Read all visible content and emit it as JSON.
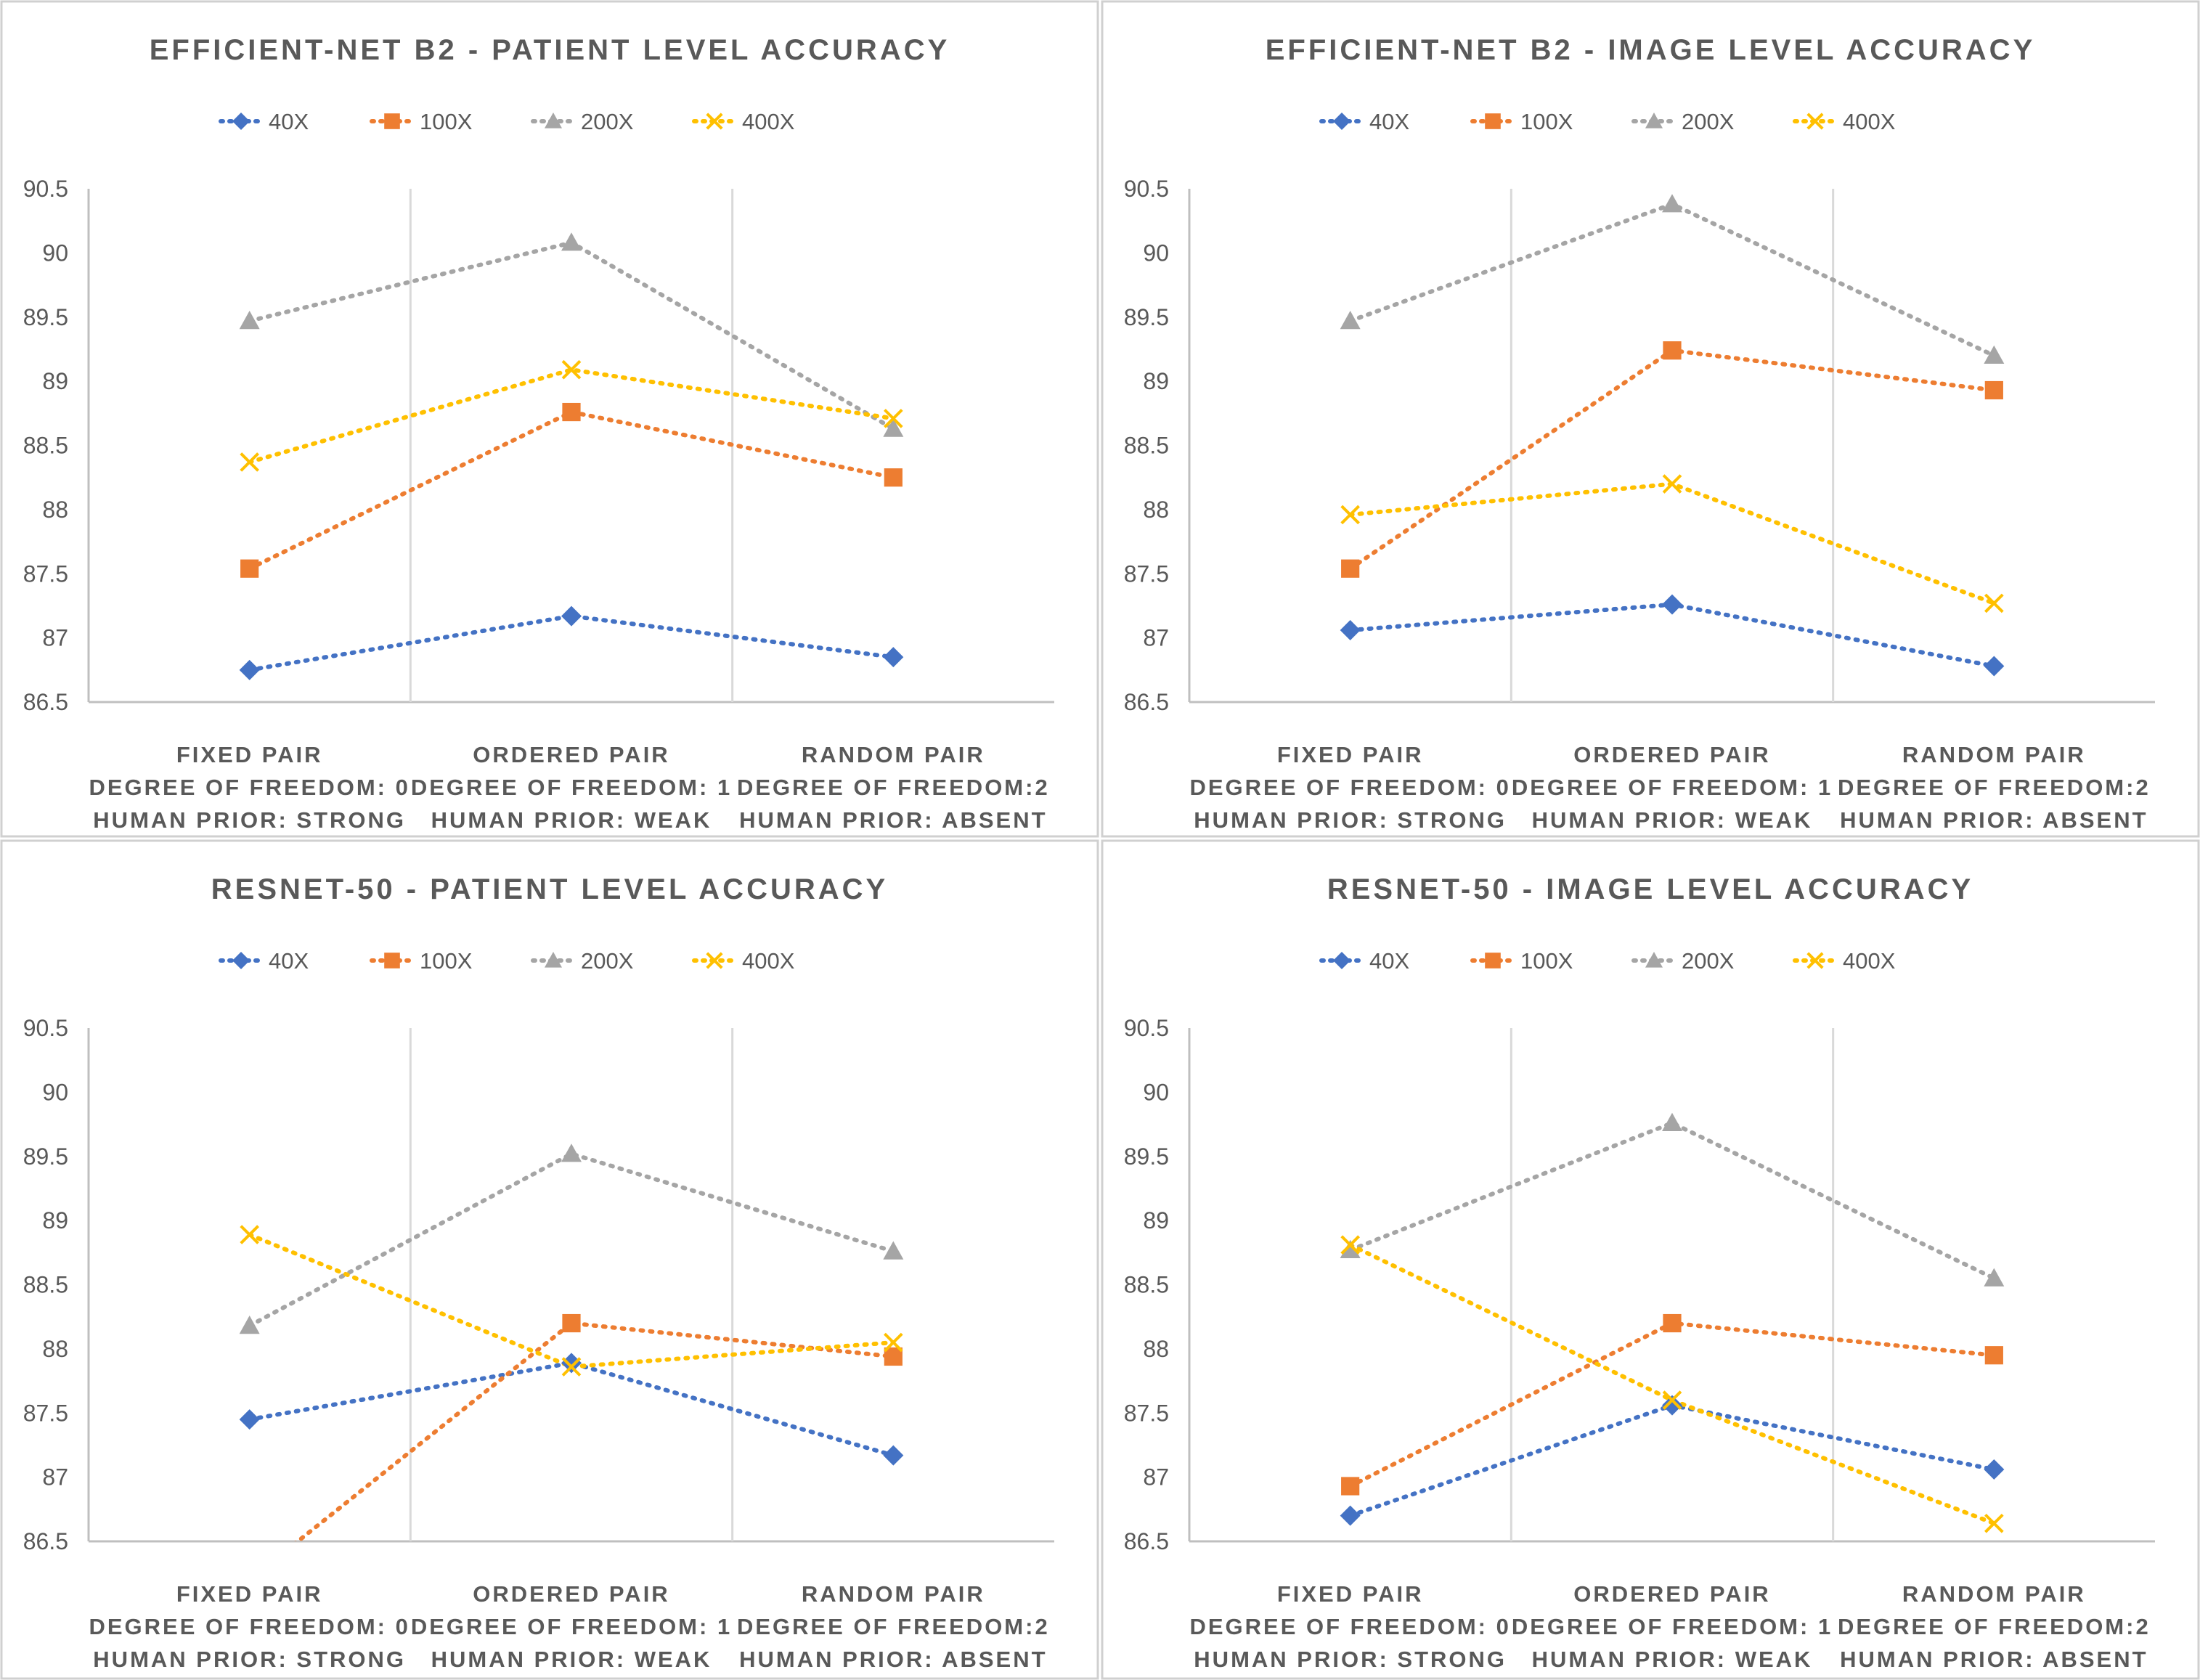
{
  "colors": {
    "40X": "#4472C4",
    "100X": "#ED7D31",
    "200X": "#A5A5A5",
    "400X": "#FFC000"
  },
  "markers": {
    "40X": "diamond",
    "100X": "square",
    "200X": "triangle",
    "400X": "x-cross"
  },
  "chart_data": [
    {
      "type": "line",
      "title": "EFFICIENT-NET B2 - PATIENT LEVEL ACCURACY",
      "legend_position": "top",
      "grid": false,
      "ylim": [
        86.5,
        90.5
      ],
      "yticks": [
        "86.5",
        "87",
        "87.5",
        "88",
        "88.5",
        "89",
        "89.5",
        "90",
        "90.5"
      ],
      "categories": [
        [
          "FIXED PAIR",
          "DEGREE OF FREEDOM: 0",
          "HUMAN PRIOR: STRONG"
        ],
        [
          "ORDERED PAIR",
          "DEGREE OF FREEDOM: 1",
          "HUMAN PRIOR: WEAK"
        ],
        [
          "RANDOM PAIR",
          "DEGREE OF FREEDOM:2",
          "HUMAN PRIOR: ABSENT"
        ]
      ],
      "series": [
        {
          "name": "40X",
          "values": [
            86.75,
            87.17,
            86.85
          ]
        },
        {
          "name": "100X",
          "values": [
            87.54,
            88.76,
            88.25
          ]
        },
        {
          "name": "200X",
          "values": [
            89.47,
            90.08,
            88.63
          ]
        },
        {
          "name": "400X",
          "values": [
            88.37,
            89.09,
            88.71
          ]
        }
      ]
    },
    {
      "type": "line",
      "title": "EFFICIENT-NET B2 - IMAGE LEVEL ACCURACY",
      "legend_position": "top",
      "grid": false,
      "ylim": [
        86.5,
        90.5
      ],
      "yticks": [
        "86.5",
        "87",
        "87.5",
        "88",
        "88.5",
        "89",
        "89.5",
        "90",
        "90.5"
      ],
      "categories": [
        [
          "FIXED PAIR",
          "DEGREE OF FREEDOM: 0",
          "HUMAN PRIOR: STRONG"
        ],
        [
          "ORDERED PAIR",
          "DEGREE OF FREEDOM: 1",
          "HUMAN PRIOR: WEAK"
        ],
        [
          "RANDOM PAIR",
          "DEGREE OF FREEDOM:2",
          "HUMAN PRIOR: ABSENT"
        ]
      ],
      "series": [
        {
          "name": "40X",
          "values": [
            87.06,
            87.26,
            86.78
          ]
        },
        {
          "name": "100X",
          "values": [
            87.54,
            89.24,
            88.93
          ]
        },
        {
          "name": "200X",
          "values": [
            89.47,
            90.38,
            89.2
          ]
        },
        {
          "name": "400X",
          "values": [
            87.96,
            88.2,
            87.27
          ]
        }
      ]
    },
    {
      "type": "line",
      "title": "RESNET-50 - PATIENT LEVEL ACCURACY",
      "legend_position": "top",
      "grid": false,
      "ylim": [
        86.5,
        90.5
      ],
      "yticks": [
        "86.5",
        "87",
        "87.5",
        "88",
        "88.5",
        "89",
        "89.5",
        "90",
        "90.5"
      ],
      "categories": [
        [
          "FIXED PAIR",
          "DEGREE OF FREEDOM: 0",
          "HUMAN PRIOR: STRONG"
        ],
        [
          "ORDERED PAIR",
          "DEGREE OF FREEDOM: 1",
          "HUMAN PRIOR: WEAK"
        ],
        [
          "RANDOM PAIR",
          "DEGREE OF FREEDOM:2",
          "HUMAN PRIOR: ABSENT"
        ]
      ],
      "series": [
        {
          "name": "40X",
          "values": [
            87.45,
            87.89,
            87.17
          ]
        },
        {
          "name": "100X",
          "values": [
            86.2,
            88.2,
            87.94
          ]
        },
        {
          "name": "200X",
          "values": [
            88.18,
            89.52,
            88.76
          ]
        },
        {
          "name": "400X",
          "values": [
            88.89,
            87.86,
            88.05
          ]
        }
      ]
    },
    {
      "type": "line",
      "title": "RESNET-50 - IMAGE LEVEL ACCURACY",
      "legend_position": "top",
      "grid": false,
      "ylim": [
        86.5,
        90.5
      ],
      "yticks": [
        "86.5",
        "87",
        "87.5",
        "88",
        "88.5",
        "89",
        "89.5",
        "90",
        "90.5"
      ],
      "categories": [
        [
          "FIXED PAIR",
          "DEGREE OF FREEDOM: 0",
          "HUMAN PRIOR: STRONG"
        ],
        [
          "ORDERED PAIR",
          "DEGREE OF FREEDOM: 1",
          "HUMAN PRIOR: WEAK"
        ],
        [
          "RANDOM PAIR",
          "DEGREE OF FREEDOM:2",
          "HUMAN PRIOR: ABSENT"
        ]
      ],
      "series": [
        {
          "name": "40X",
          "values": [
            86.7,
            87.56,
            87.06
          ]
        },
        {
          "name": "100X",
          "values": [
            86.93,
            88.2,
            87.95
          ]
        },
        {
          "name": "200X",
          "values": [
            88.77,
            89.76,
            88.55
          ]
        },
        {
          "name": "400X",
          "values": [
            88.81,
            87.6,
            86.64
          ]
        }
      ]
    }
  ]
}
